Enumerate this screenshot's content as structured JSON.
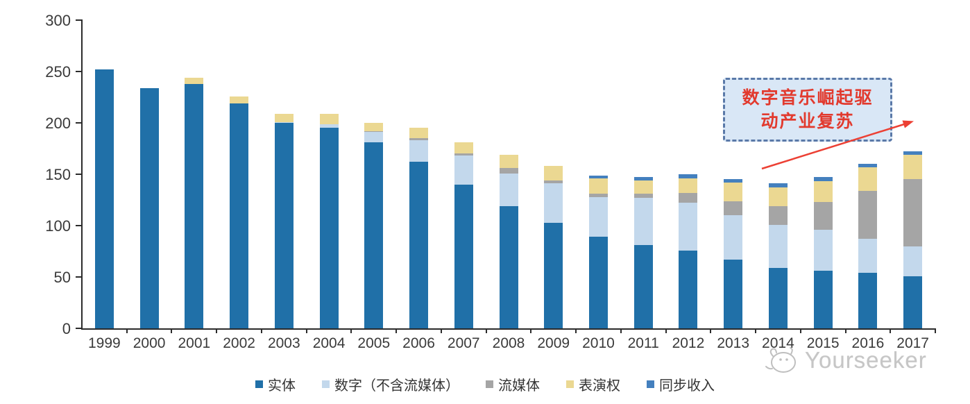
{
  "chart_data": {
    "type": "bar",
    "variant": "stacked",
    "title": "",
    "xlabel": "",
    "ylabel": "",
    "categories": [
      "1999",
      "2000",
      "2001",
      "2002",
      "2003",
      "2004",
      "2005",
      "2006",
      "2007",
      "2008",
      "2009",
      "2010",
      "2011",
      "2012",
      "2013",
      "2014",
      "2015",
      "2016",
      "2017"
    ],
    "series": [
      {
        "name": "实体",
        "color": "#2070A8",
        "values": [
          252,
          234,
          238,
          219,
          200,
          195,
          181,
          162,
          140,
          119,
          103,
          89,
          81,
          76,
          67,
          59,
          56,
          54,
          51
        ]
      },
      {
        "name": "数字（不含流媒体）",
        "color": "#C3D8EC",
        "values": [
          0,
          0,
          0,
          0,
          1,
          4,
          10,
          21,
          28,
          32,
          38,
          39,
          46,
          46,
          43,
          42,
          40,
          33,
          29
        ]
      },
      {
        "name": "流媒体",
        "color": "#A5A5A5",
        "values": [
          0,
          0,
          0,
          0,
          0,
          0,
          1,
          2,
          2,
          5,
          3,
          3,
          4,
          10,
          14,
          18,
          27,
          47,
          65
        ]
      },
      {
        "name": "表演权",
        "color": "#EBD892",
        "values": [
          0,
          0,
          6,
          7,
          8,
          10,
          8,
          10,
          11,
          13,
          14,
          15,
          13,
          14,
          18,
          18,
          20,
          23,
          24
        ]
      },
      {
        "name": "同步收入",
        "color": "#4480BE",
        "values": [
          0,
          0,
          0,
          0,
          0,
          0,
          0,
          0,
          0,
          0,
          0,
          3,
          3,
          4,
          3,
          4,
          4,
          3,
          3
        ]
      }
    ],
    "y_axis": {
      "min": 0,
      "max": 300,
      "step": 50,
      "tick_labels": [
        "0",
        "50",
        "100",
        "150",
        "200",
        "250",
        "300"
      ]
    },
    "grid": false,
    "legend_position": "bottom"
  },
  "annotation": {
    "line1": "数字音乐崛起驱",
    "line2": "动产业复苏",
    "text_color": "#E23A2E",
    "box_fill": "#D9E7F6",
    "box_border": "#5A79A8",
    "arrow_color": "#EC4034"
  },
  "watermark": {
    "text": "Yourseeker"
  }
}
